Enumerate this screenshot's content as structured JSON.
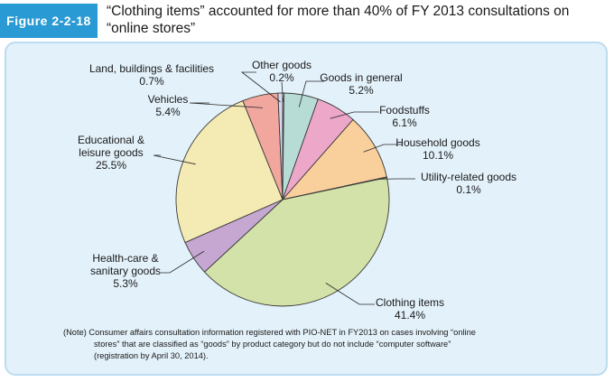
{
  "figure": {
    "label": "Figure 2-2-18",
    "title_line1": "“Clothing items” accounted for more than 40% of FY 2013 consultations on",
    "title_line2": "“online stores”"
  },
  "chart_data": {
    "type": "pie",
    "title": "“Clothing items” accounted for more than 40% of FY 2013 consultations on “online stores”",
    "unit": "%",
    "slices": [
      {
        "id": "other",
        "name": "Other goods",
        "value": 0.2,
        "label": "0.2%",
        "color": "#f3f1f0"
      },
      {
        "id": "general",
        "name": "Goods in general",
        "value": 5.2,
        "label": "5.2%",
        "color": "#b7dcd5"
      },
      {
        "id": "food",
        "name": "Foodstuffs",
        "value": 6.1,
        "label": "6.1%",
        "color": "#eca7c9"
      },
      {
        "id": "household",
        "name": "Household goods",
        "value": 10.1,
        "label": "10.1%",
        "color": "#f9cf9c"
      },
      {
        "id": "utility",
        "name": "Utility-related goods",
        "value": 0.1,
        "label": "0.1%",
        "color": "#d2e2a8"
      },
      {
        "id": "clothing",
        "name": "Clothing items",
        "value": 41.4,
        "label": "41.4%",
        "color": "#d2e2a8"
      },
      {
        "id": "health",
        "name_lines": [
          "Health-care &",
          "sanitary goods"
        ],
        "name": "Health-care & sanitary goods",
        "value": 5.3,
        "label": "5.3%",
        "color": "#c6a7d1"
      },
      {
        "id": "education",
        "name_lines": [
          "Educational &",
          "leisure goods"
        ],
        "name": "Educational & leisure goods",
        "value": 25.5,
        "label": "25.5%",
        "color": "#f4eab3"
      },
      {
        "id": "vehicles",
        "name": "Vehicles",
        "value": 5.4,
        "label": "5.4%",
        "color": "#f1a79d"
      },
      {
        "id": "land",
        "name": "Land, buildings & facilities",
        "value": 0.7,
        "label": "0.7%",
        "color": "#d6d7ee"
      }
    ]
  },
  "note": {
    "line1": "(Note) Consumer affairs consultation information registered with PIO-NET in FY2013 on cases involving “online",
    "line2": "stores” that are classified as “goods” by product category but do not include “computer software”",
    "line3": "(registration by April 30, 2014)."
  }
}
